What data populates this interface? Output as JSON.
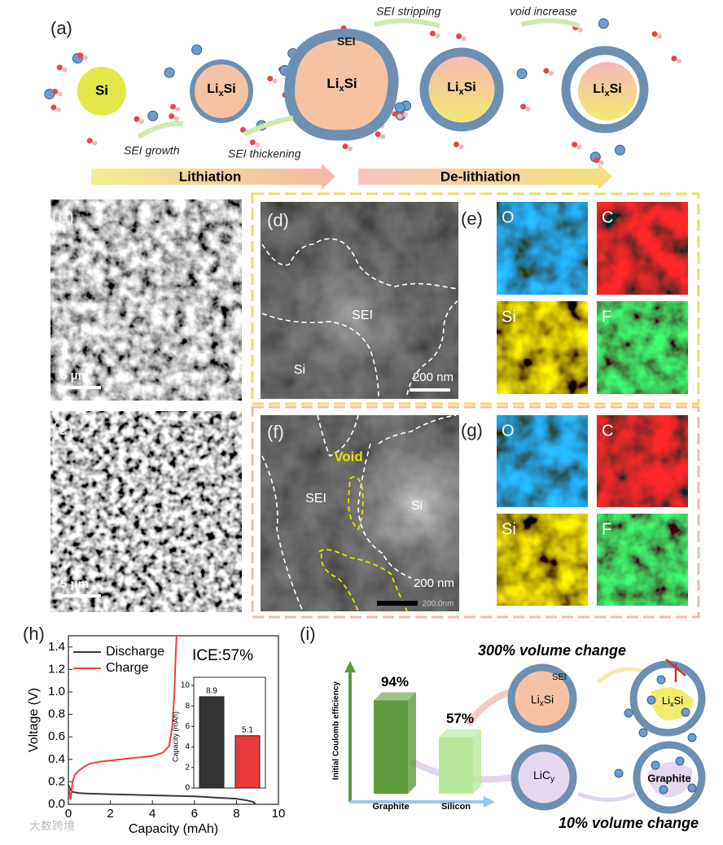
{
  "panels": {
    "a": "(a)",
    "b": "(b)",
    "c": "(c)",
    "d": "(d)",
    "e": "(e)",
    "f": "(f)",
    "g": "(g)",
    "h": "(h)",
    "i": "(i)"
  },
  "schematic_a": {
    "si": "Si",
    "lixsi": [
      "Li",
      "x",
      "Si"
    ],
    "sei": "SEI",
    "steps": [
      "SEI growth",
      "SEI thickening",
      "SEI stripping",
      "void increase"
    ],
    "phases": [
      "Lithiation",
      "De-lithiation"
    ]
  },
  "micrographs": {
    "b_scale": "5 μm",
    "c_scale": "5 μm",
    "d_labels": [
      "SEI",
      "Si"
    ],
    "d_scale": "200 nm",
    "f_labels": [
      "Void",
      "SEI",
      "Si"
    ],
    "f_scale": "200 nm",
    "f_scale_small": "200.0nm"
  },
  "eds_maps": {
    "e": [
      "O",
      "C",
      "Si",
      "F"
    ],
    "g": [
      "O",
      "C",
      "Si",
      "F"
    ]
  },
  "chart_data": [
    {
      "type": "line",
      "xlabel": "Capacity (mAh)",
      "ylabel": "Voltage (V)",
      "annotation": "ICE:57%",
      "xlim": [
        0,
        10
      ],
      "xticks": [
        0,
        2,
        4,
        6,
        8,
        10
      ],
      "ylim": [
        0,
        1.5
      ],
      "yticks": [
        {
          "value": 0,
          "label": "0.0"
        },
        0.2,
        0.4,
        0.6,
        0.8,
        {
          "value": 1,
          "label": "1.0"
        },
        1.2,
        1.4
      ],
      "legend": "upper left",
      "series": [
        {
          "name": "Discharge",
          "color": "#3a3a3a",
          "x": [
            0,
            0.05,
            0.1,
            0.2,
            0.5,
            1,
            2,
            3,
            4,
            5,
            6,
            7,
            8,
            8.5,
            8.8,
            8.9
          ],
          "values": [
            0.17,
            0.15,
            0.13,
            0.11,
            0.1,
            0.095,
            0.09,
            0.085,
            0.08,
            0.075,
            0.07,
            0.06,
            0.05,
            0.035,
            0.02,
            0.005
          ]
        },
        {
          "name": "Charge",
          "color": "#e8403c",
          "x": [
            0.02,
            0.1,
            0.2,
            0.3,
            0.5,
            0.8,
            1,
            1.5,
            2,
            3,
            4,
            4.5,
            4.8,
            4.95,
            5.05,
            5.1,
            5.15
          ],
          "values": [
            0.15,
            0.04,
            0.2,
            0.26,
            0.3,
            0.34,
            0.36,
            0.38,
            0.39,
            0.41,
            0.43,
            0.46,
            0.52,
            0.7,
            1.0,
            1.3,
            1.5
          ]
        }
      ]
    },
    {
      "type": "bar",
      "ylabel": "Capacity (mAh)",
      "categories": [
        null,
        null
      ],
      "values": [
        8.9,
        5.1
      ],
      "value_labels": [
        "8.9",
        "5.1"
      ],
      "colors": [
        "#333333",
        "#e83a3a"
      ],
      "ylim": [
        0,
        10
      ],
      "yticks": [
        0,
        2,
        4,
        6,
        8,
        10
      ]
    },
    {
      "type": "bar",
      "ylabel": "Initial Coulomb efficiency",
      "categories": [
        "Graphite",
        "Silicon"
      ],
      "values": [
        94,
        57
      ],
      "value_labels": [
        "94%",
        "57%"
      ],
      "colors": [
        "#5f9a3c",
        "#b9e89a"
      ]
    }
  ],
  "schematic_i": {
    "sei": "SEI",
    "lixsi": [
      "Li",
      "x",
      "Si"
    ],
    "licy": [
      "Li",
      "C",
      "y"
    ],
    "graphite": "Graphite",
    "top_note": "300% volume change",
    "bottom_note": "10% volume change"
  },
  "watermark": "大数跨境"
}
